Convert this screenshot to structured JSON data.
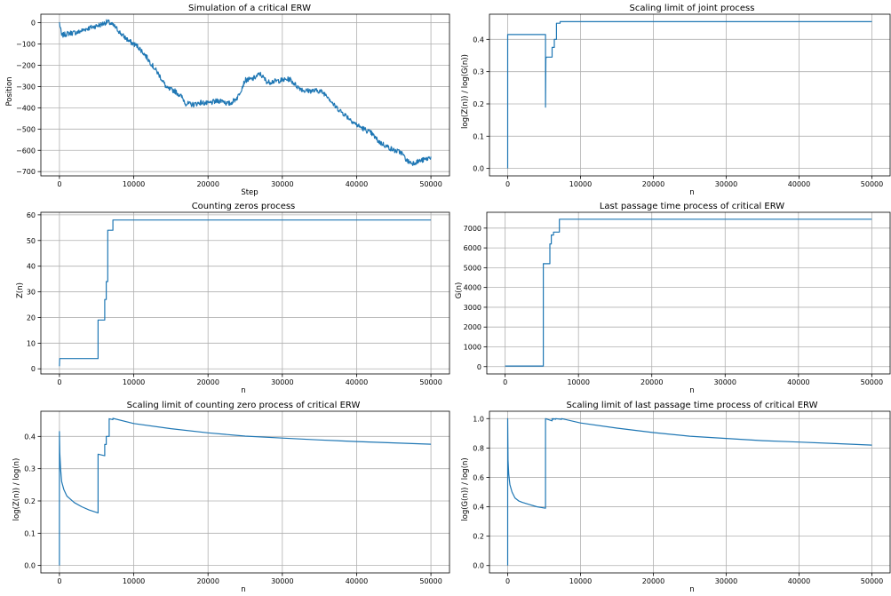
{
  "chart_data": [
    {
      "type": "line",
      "title": "Simulation of a critical ERW",
      "xlabel": "Step",
      "ylabel": "Position",
      "xlim": [
        -2500,
        52500
      ],
      "ylim": [
        -720,
        40
      ],
      "xticks": [
        0,
        10000,
        20000,
        30000,
        40000,
        50000
      ],
      "yticks": [
        -700,
        -600,
        -500,
        -400,
        -300,
        -200,
        -100,
        0
      ],
      "grid": true,
      "color": "#1f77b4",
      "noise": 12,
      "series": [
        {
          "x": [
            0,
            300,
            1200,
            2500,
            3500,
            4500,
            5500,
            6500,
            7500,
            8500,
            9500,
            10500,
            11500,
            12500,
            13500,
            14500,
            15500,
            16500,
            17000,
            18000,
            19000,
            20000,
            21000,
            22000,
            22500,
            23000,
            24000,
            25000,
            26000,
            27000,
            28000,
            29000,
            30000,
            31000,
            32000,
            33000,
            34000,
            35000,
            36000,
            37000,
            38000,
            39000,
            40000,
            41000,
            42000,
            43000,
            44000,
            45000,
            46000,
            46800,
            47500,
            48500,
            49500,
            50000
          ],
          "y": [
            0,
            -60,
            -50,
            -45,
            -30,
            -20,
            -10,
            5,
            -20,
            -60,
            -90,
            -110,
            -150,
            -200,
            -250,
            -310,
            -320,
            -350,
            -380,
            -385,
            -375,
            -380,
            -370,
            -365,
            -380,
            -380,
            -350,
            -270,
            -265,
            -240,
            -280,
            -275,
            -270,
            -265,
            -300,
            -320,
            -320,
            -320,
            -340,
            -390,
            -420,
            -450,
            -480,
            -500,
            -520,
            -560,
            -580,
            -600,
            -610,
            -650,
            -660,
            -650,
            -640,
            -630
          ]
        }
      ]
    },
    {
      "type": "line",
      "title": "Scaling limit of joint process",
      "xlabel": "n",
      "ylabel": "log(Z(n)) / log(G(n))",
      "xlim": [
        -2500,
        52500
      ],
      "ylim": [
        -0.023,
        0.478
      ],
      "xticks": [
        0,
        10000,
        20000,
        30000,
        40000,
        50000
      ],
      "yticks": [
        0.0,
        0.1,
        0.2,
        0.3,
        0.4
      ],
      "tick_decimals": 1,
      "grid": true,
      "color": "#1f77b4",
      "series": [
        {
          "x": [
            0,
            0,
            30,
            5200,
            5200,
            5250,
            5300,
            5300,
            6100,
            6100,
            6400,
            6400,
            6700,
            6700,
            7200,
            7200,
            50000
          ],
          "y": [
            0.0,
            0.415,
            0.415,
            0.415,
            0.19,
            0.34,
            0.345,
            0.345,
            0.345,
            0.375,
            0.375,
            0.4,
            0.4,
            0.45,
            0.45,
            0.455,
            0.455
          ]
        }
      ]
    },
    {
      "type": "line",
      "title": "Counting zeros process",
      "xlabel": "n",
      "ylabel": "Z(n)",
      "xlim": [
        -2500,
        52500
      ],
      "ylim": [
        -2,
        61
      ],
      "xticks": [
        0,
        10000,
        20000,
        30000,
        40000,
        50000
      ],
      "yticks": [
        0,
        10,
        20,
        30,
        40,
        50,
        60
      ],
      "grid": true,
      "color": "#1f77b4",
      "series": [
        {
          "x": [
            0,
            30,
            5200,
            5200,
            6100,
            6100,
            6300,
            6300,
            6500,
            6500,
            6700,
            6700,
            7200,
            7200,
            50000
          ],
          "y": [
            1,
            4,
            4,
            19,
            19,
            27,
            27,
            34,
            34,
            54,
            54,
            54,
            54,
            58,
            58
          ]
        }
      ]
    },
    {
      "type": "line",
      "title": "Last passage time process of critical ERW",
      "xlabel": "n",
      "ylabel": "G(n)",
      "xlim": [
        -2500,
        52500
      ],
      "ylim": [
        -370,
        7800
      ],
      "xticks": [
        0,
        10000,
        20000,
        30000,
        40000,
        50000
      ],
      "yticks": [
        0,
        1000,
        2000,
        3000,
        4000,
        5000,
        6000,
        7000
      ],
      "grid": true,
      "color": "#1f77b4",
      "series": [
        {
          "x": [
            0,
            5200,
            5200,
            6100,
            6100,
            6300,
            6300,
            6600,
            6600,
            7400,
            7400,
            50000
          ],
          "y": [
            30,
            30,
            5200,
            5200,
            6200,
            6200,
            6650,
            6650,
            6800,
            6800,
            7450,
            7450
          ]
        }
      ]
    },
    {
      "type": "line",
      "title": "Scaling limit of counting zero process of critical ERW",
      "xlabel": "n",
      "ylabel": "log(Z(n)) / log(n)",
      "xlim": [
        -2500,
        52500
      ],
      "ylim": [
        -0.023,
        0.478
      ],
      "xticks": [
        0,
        10000,
        20000,
        30000,
        40000,
        50000
      ],
      "yticks": [
        0.0,
        0.1,
        0.2,
        0.3,
        0.4
      ],
      "tick_decimals": 1,
      "grid": true,
      "color": "#1f77b4",
      "series": [
        {
          "x": [
            0,
            0,
            50,
            150,
            300,
            600,
            1000,
            1500,
            2000,
            3000,
            4000,
            5200,
            5200,
            6100,
            6100,
            6300,
            6300,
            6700,
            6700,
            7200,
            7200,
            10000,
            15000,
            20000,
            25000,
            30000,
            35000,
            40000,
            45000,
            50000
          ],
          "y": [
            0.0,
            0.415,
            0.35,
            0.3,
            0.26,
            0.235,
            0.215,
            0.205,
            0.195,
            0.182,
            0.172,
            0.163,
            0.345,
            0.34,
            0.375,
            0.375,
            0.4,
            0.4,
            0.455,
            0.452,
            0.456,
            0.44,
            0.424,
            0.411,
            0.401,
            0.395,
            0.389,
            0.384,
            0.38,
            0.376
          ]
        }
      ]
    },
    {
      "type": "line",
      "title": "Scaling limit of last passage time process of critical ERW",
      "xlabel": "n",
      "ylabel": "log(G(n)) / log(n)",
      "xlim": [
        -2500,
        52500
      ],
      "ylim": [
        -0.05,
        1.05
      ],
      "xticks": [
        0,
        10000,
        20000,
        30000,
        40000,
        50000
      ],
      "yticks": [
        0.0,
        0.2,
        0.4,
        0.6,
        0.8,
        1.0
      ],
      "tick_decimals": 1,
      "grid": true,
      "color": "#1f77b4",
      "series": [
        {
          "x": [
            0,
            0,
            50,
            150,
            300,
            600,
            1000,
            1500,
            2000,
            3000,
            4000,
            5200,
            5200,
            6100,
            6100,
            6300,
            6300,
            6600,
            6600,
            7400,
            7400,
            10000,
            15000,
            20000,
            25000,
            30000,
            35000,
            40000,
            45000,
            50000
          ],
          "y": [
            0.0,
            1.0,
            0.72,
            0.62,
            0.55,
            0.5,
            0.46,
            0.44,
            0.43,
            0.415,
            0.4,
            0.39,
            1.0,
            0.985,
            1.0,
            0.995,
            1.0,
            0.995,
            1.0,
            0.995,
            1.0,
            0.97,
            0.935,
            0.905,
            0.88,
            0.865,
            0.85,
            0.84,
            0.83,
            0.82
          ]
        }
      ]
    }
  ]
}
